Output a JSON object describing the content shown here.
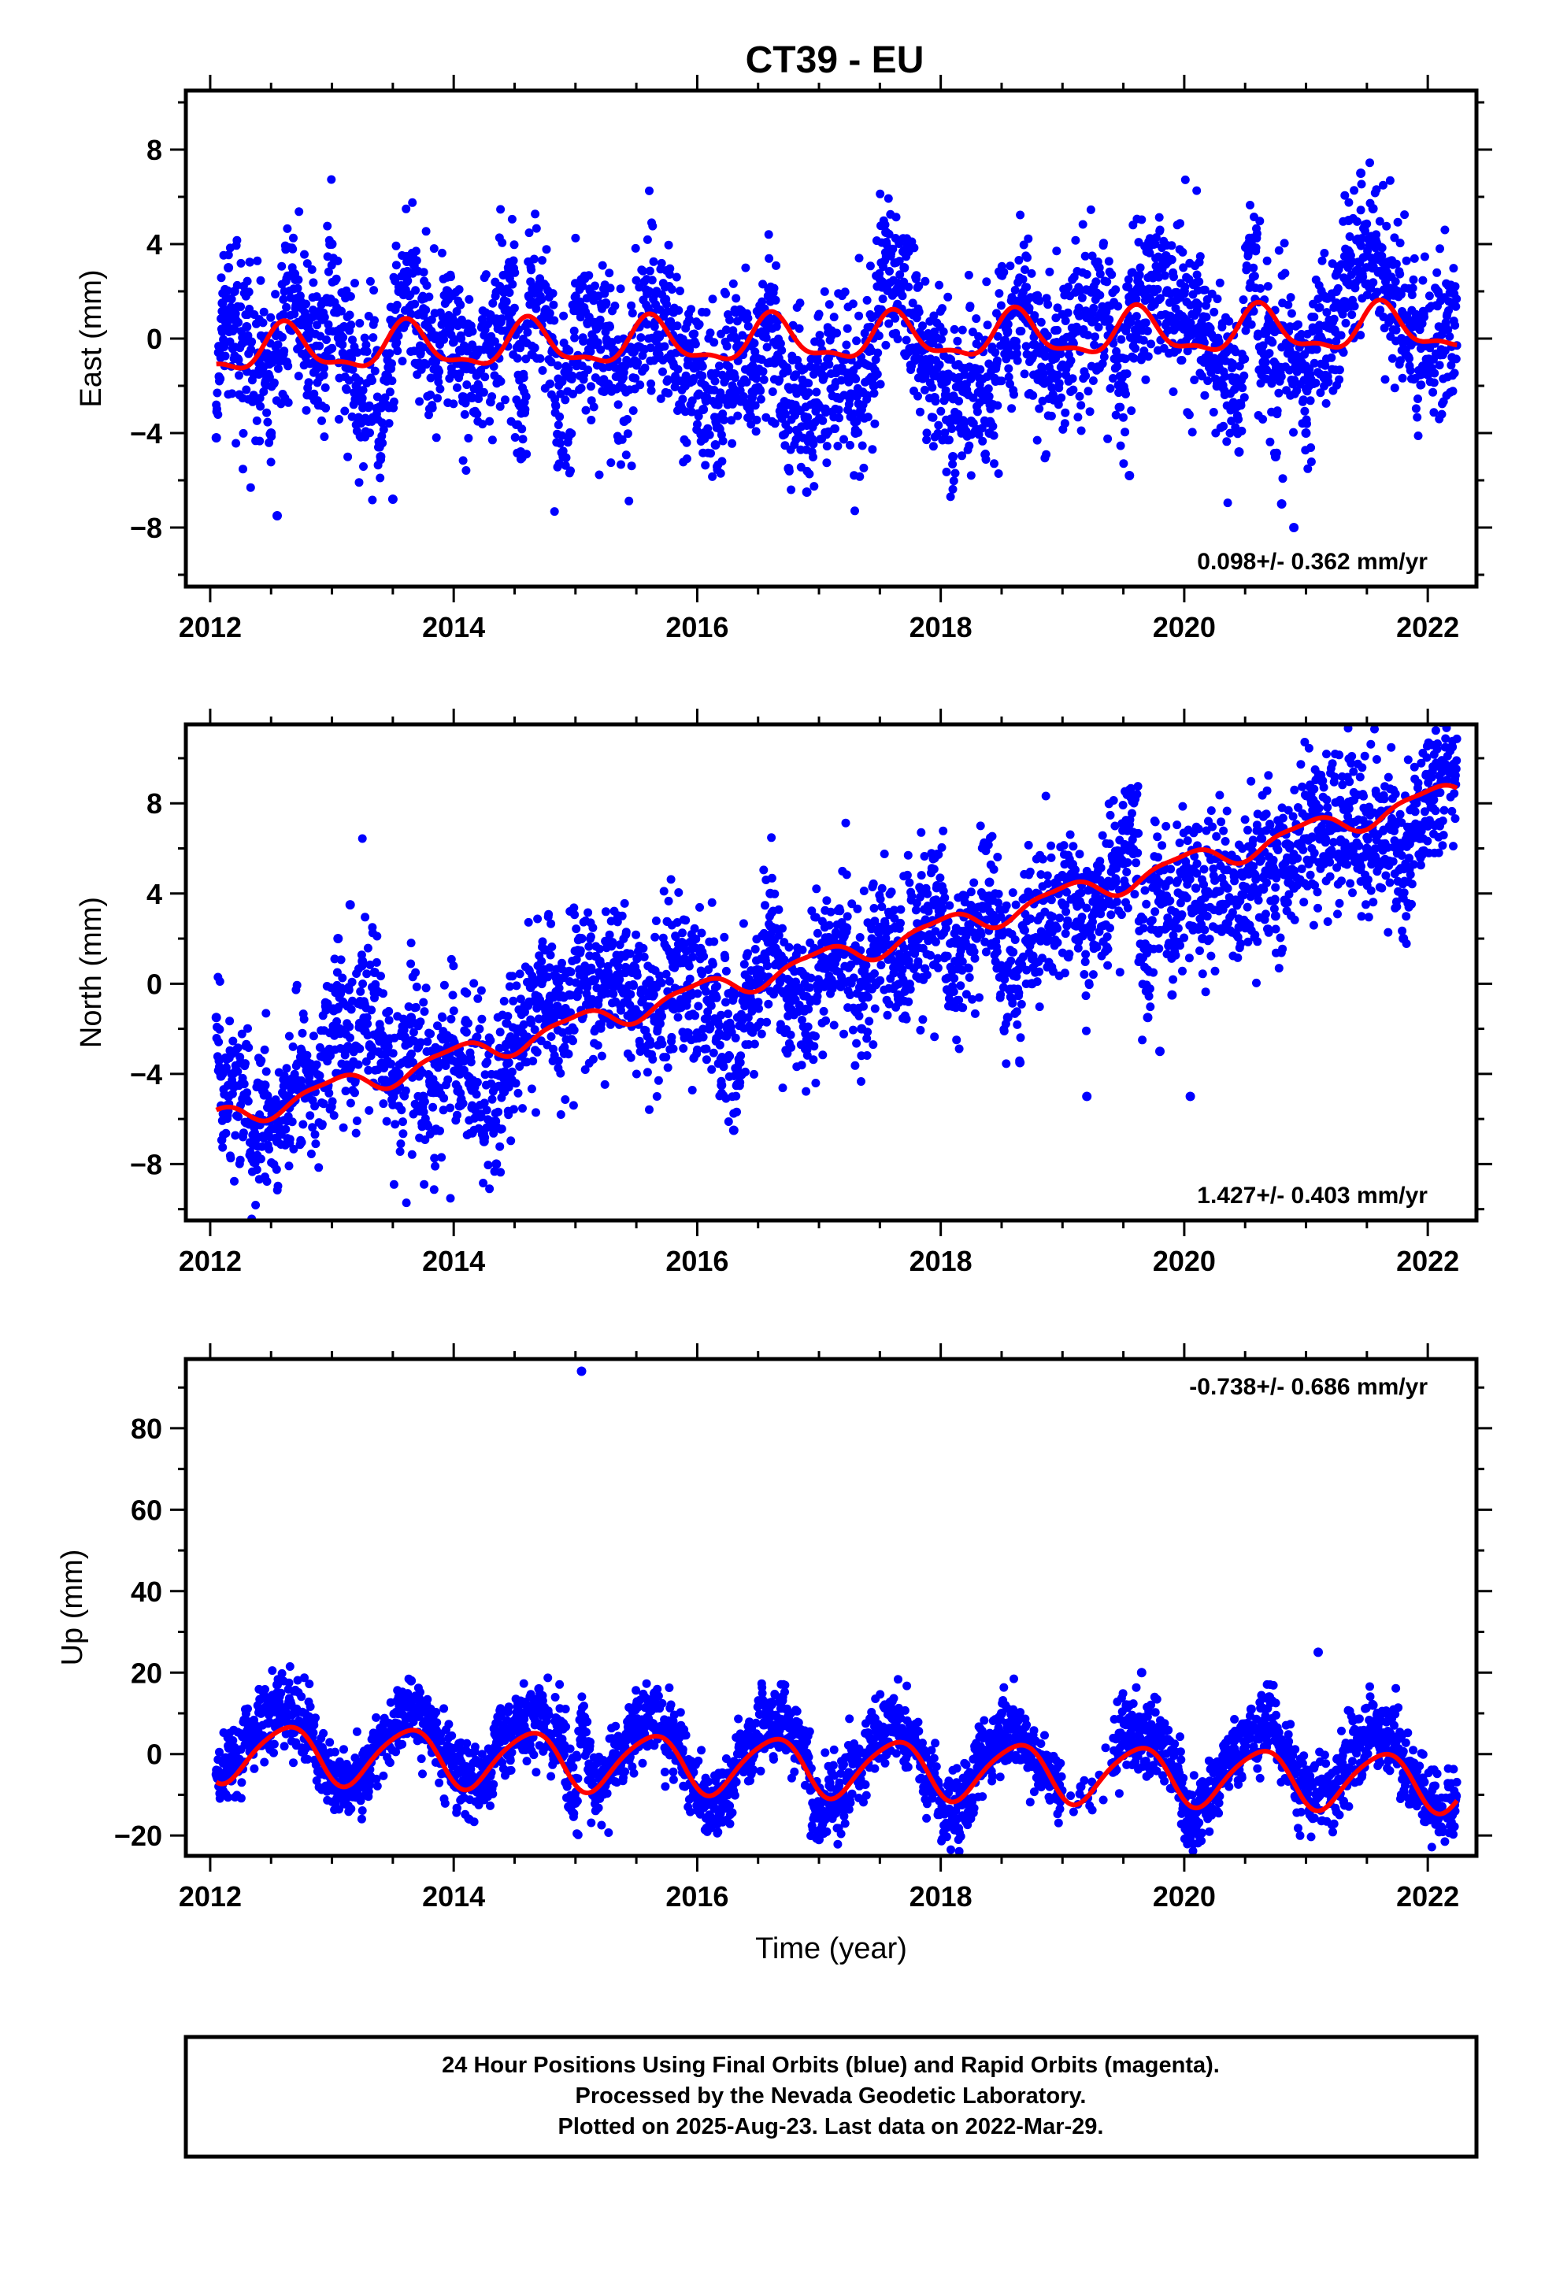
{
  "title": "CT39 - EU",
  "colors": {
    "final_orbits": "#0000ff",
    "fit": "#ff0000",
    "frame": "#000000"
  },
  "chart_data": [
    {
      "type": "scatter",
      "panel": "east",
      "ylabel": "East (mm)",
      "xlabel": "",
      "xlim": [
        2011.8,
        2022.4
      ],
      "ylim": [
        -10.5,
        10.5
      ],
      "xticks": [
        2012,
        2014,
        2016,
        2018,
        2020,
        2022
      ],
      "yticks": [
        -8,
        -4,
        0,
        4,
        8
      ],
      "ytick_labels": [
        "−8",
        "−4",
        "0",
        "4",
        "8"
      ],
      "rate_text": "0.098+/- 0.362 mm/yr",
      "rate_position": "bottom-right",
      "fit": {
        "offset": -0.55,
        "rate": 0.098,
        "t0": 2012.0,
        "annual_amp": 0.9,
        "annual_peak": 2012.62,
        "semiannual_amp": 0.35,
        "semiannual_phase": 2012.1
      },
      "series": [
        {
          "style": "points",
          "x": [
            2012.05,
            2012.1,
            2012.15,
            2012.2,
            2012.3,
            2012.4,
            2012.5,
            2012.55,
            2012.6,
            2012.7,
            2012.8,
            2012.9,
            2013.0,
            2013.1,
            2013.2,
            2013.3,
            2013.4,
            2013.5,
            2013.55,
            2013.65,
            2013.75,
            2013.85,
            2013.95,
            2014.05,
            2014.15,
            2014.3,
            2014.45,
            2014.55,
            2014.65,
            2014.75,
            2014.9,
            2015.05,
            2015.15,
            2015.25,
            2015.4,
            2015.5,
            2015.6,
            2015.75,
            2015.9,
            2016.05,
            2016.15,
            2016.3,
            2016.45,
            2016.6,
            2016.75,
            2016.9,
            2017.05,
            2017.15,
            2017.3,
            2017.45,
            2017.55,
            2017.7,
            2017.85,
            2017.95,
            2018.1,
            2018.25,
            2018.4,
            2018.55,
            2018.7,
            2018.8,
            2019.3,
            2019.55,
            2019.65,
            2019.75,
            2019.85,
            2020.0,
            2020.1,
            2020.2,
            2020.3,
            2020.45,
            2020.55,
            2020.65,
            2020.75,
            2020.8,
            2020.9,
            2021.0,
            2021.1,
            2021.25,
            2021.35,
            2021.45,
            2021.55,
            2021.65,
            2021.75,
            2021.85,
            2021.95,
            2022.2
          ],
          "y": [
            -4.2,
            1.5,
            3.0,
            2.0,
            0.5,
            -1.5,
            -4.0,
            -7.5,
            1.0,
            2.5,
            0.5,
            -1.0,
            4.0,
            0.5,
            -2.0,
            -3.5,
            -5.0,
            -6.8,
            2.0,
            3.5,
            1.0,
            -1.0,
            2.0,
            -0.5,
            -2.5,
            1.0,
            3.0,
            -4.8,
            2.0,
            1.0,
            -5.0,
            2.5,
            0.0,
            1.5,
            -3.5,
            -1.0,
            2.0,
            0.5,
            -2.0,
            -3.0,
            -4.5,
            -1.5,
            -2.5,
            -1.0,
            -5.5,
            -6.5,
            -3.0,
            -2.5,
            -4.0,
            -2.0,
            4.5,
            3.0,
            -0.5,
            -2.5,
            -5.0,
            -3.5,
            -4.0,
            -0.5,
            1.5,
            -1.5,
            3.0,
            -5.8,
            2.0,
            4.0,
            3.5,
            2.0,
            1.5,
            0.5,
            -2.0,
            -4.8,
            4.0,
            -1.0,
            -5.0,
            -7.0,
            -8.0,
            -4.0,
            0.0,
            1.5,
            5.0,
            7.0,
            5.5,
            3.0,
            2.0,
            0.5,
            -1.5,
            1.5
          ]
        }
      ]
    },
    {
      "type": "scatter",
      "panel": "north",
      "ylabel": "North (mm)",
      "xlabel": "",
      "xlim": [
        2011.8,
        2022.4
      ],
      "ylim": [
        -10.5,
        11.5
      ],
      "xticks": [
        2012,
        2014,
        2016,
        2018,
        2020,
        2022
      ],
      "yticks": [
        -8,
        -4,
        0,
        4,
        8
      ],
      "ytick_labels": [
        "−8",
        "−4",
        "0",
        "4",
        "8"
      ],
      "rate_text": "1.427+/- 0.403 mm/yr",
      "rate_position": "bottom-right",
      "fit": {
        "offset": -6.1,
        "rate": 1.427,
        "t0": 2012.0,
        "annual_amp": 0.5,
        "annual_peak": 2013.0,
        "semiannual_amp": 0.15,
        "semiannual_phase": 2012.2
      },
      "series": [
        {
          "style": "points",
          "x": [
            2012.05,
            2012.1,
            2012.15,
            2012.25,
            2012.35,
            2012.45,
            2012.55,
            2012.65,
            2012.75,
            2012.85,
            2012.95,
            2013.05,
            2013.15,
            2013.25,
            2013.35,
            2013.45,
            2013.55,
            2013.65,
            2013.75,
            2013.85,
            2013.95,
            2014.05,
            2014.15,
            2014.25,
            2014.35,
            2014.45,
            2014.55,
            2014.65,
            2014.75,
            2014.85,
            2014.95,
            2015.05,
            2015.2,
            2015.35,
            2015.5,
            2015.65,
            2015.8,
            2015.95,
            2016.1,
            2016.2,
            2016.3,
            2016.45,
            2016.6,
            2016.75,
            2016.9,
            2017.05,
            2017.2,
            2017.35,
            2017.5,
            2017.65,
            2017.8,
            2017.95,
            2018.1,
            2018.25,
            2018.4,
            2018.55,
            2018.65,
            2018.75,
            2019.2,
            2019.55,
            2019.7,
            2019.8,
            2019.9,
            2020.05,
            2020.15,
            2020.3,
            2020.45,
            2020.6,
            2020.75,
            2020.9,
            2021.05,
            2021.2,
            2021.35,
            2021.5,
            2021.65,
            2021.8,
            2021.95,
            2022.2
          ],
          "y": [
            -1.5,
            -4.0,
            -5.0,
            -3.5,
            -6.0,
            -4.5,
            -7.0,
            -5.5,
            -3.0,
            -4.5,
            -1.0,
            2.0,
            3.5,
            1.0,
            0.5,
            -2.5,
            -4.0,
            -1.5,
            -5.0,
            -6.5,
            -3.0,
            -4.0,
            -5.5,
            -7.0,
            -8.0,
            -3.5,
            -2.0,
            0.0,
            1.5,
            -1.0,
            -0.5,
            2.0,
            1.0,
            3.0,
            0.5,
            -1.5,
            1.0,
            -0.5,
            -2.0,
            -4.5,
            -6.5,
            -1.0,
            4.0,
            -1.0,
            -2.5,
            0.0,
            1.5,
            -2.0,
            2.5,
            -0.5,
            2.0,
            3.5,
            -1.0,
            1.5,
            4.5,
            -1.5,
            -3.5,
            0.0,
            -5.0,
            8.5,
            -1.5,
            -3.0,
            -0.5,
            -5.0,
            2.0,
            3.5,
            2.5,
            4.0,
            3.0,
            5.0,
            6.5,
            7.0,
            8.0,
            6.0,
            5.5,
            2.0,
            7.0,
            10.5
          ]
        }
      ]
    },
    {
      "type": "scatter",
      "panel": "up",
      "ylabel": "Up (mm)",
      "xlabel": "Time (year)",
      "xlim": [
        2011.8,
        2022.4
      ],
      "ylim": [
        -25,
        97
      ],
      "xticks": [
        2012,
        2014,
        2016,
        2018,
        2020,
        2022
      ],
      "yticks": [
        -20,
        0,
        20,
        40,
        60,
        80
      ],
      "ytick_labels": [
        "−20",
        "0",
        "20",
        "40",
        "60",
        "80"
      ],
      "rate_text": "-0.738+/- 0.686 mm/yr",
      "rate_position": "top-right",
      "fit": {
        "offset": 0.5,
        "rate": -0.738,
        "t0": 2012.0,
        "annual_amp": 7.0,
        "annual_peak": 2012.62,
        "semiannual_amp": 1.0,
        "semiannual_phase": 2012.3
      },
      "series": [
        {
          "style": "points",
          "x": [
            2012.05,
            2012.15,
            2012.3,
            2012.45,
            2012.55,
            2012.65,
            2012.8,
            2012.95,
            2013.1,
            2013.25,
            2013.4,
            2013.55,
            2013.65,
            2013.8,
            2013.95,
            2014.1,
            2014.25,
            2014.4,
            2014.55,
            2014.7,
            2014.85,
            2015.0,
            2015.05,
            2015.2,
            2015.35,
            2015.5,
            2015.65,
            2015.8,
            2015.95,
            2016.1,
            2016.25,
            2016.4,
            2016.55,
            2016.7,
            2016.85,
            2017.0,
            2017.15,
            2017.3,
            2017.45,
            2017.6,
            2017.75,
            2017.9,
            2018.05,
            2018.2,
            2018.35,
            2018.5,
            2018.6,
            2018.75,
            2019.15,
            2019.55,
            2019.65,
            2019.8,
            2019.95,
            2020.05,
            2020.2,
            2020.4,
            2020.55,
            2020.7,
            2020.85,
            2021.0,
            2021.1,
            2021.25,
            2021.4,
            2021.55,
            2021.7,
            2021.85,
            2022.2
          ],
          "y": [
            -5,
            2,
            8,
            14,
            17,
            12,
            5,
            -3,
            -6,
            -8,
            4,
            14,
            18,
            10,
            2,
            -5,
            -10,
            6,
            13,
            16,
            7,
            -12,
            94,
            -6,
            2,
            12,
            15,
            8,
            -5,
            -15,
            -10,
            3,
            12,
            14,
            6,
            -21,
            -12,
            -2,
            8,
            13,
            5,
            -6,
            -18,
            -12,
            4,
            10,
            7,
            -3,
            -8,
            12,
            20,
            6,
            -4,
            -20,
            -10,
            5,
            11,
            14,
            2,
            -6,
            25,
            -4,
            6,
            12,
            9,
            -4,
            -15
          ]
        }
      ]
    }
  ],
  "footer": {
    "line1": "24 Hour Positions Using Final Orbits (blue) and Rapid Orbits (magenta).",
    "line2": "Processed by the Nevada Geodetic Laboratory.",
    "line3": "Plotted on 2025-Aug-23. Last data on 2022-Mar-29."
  }
}
